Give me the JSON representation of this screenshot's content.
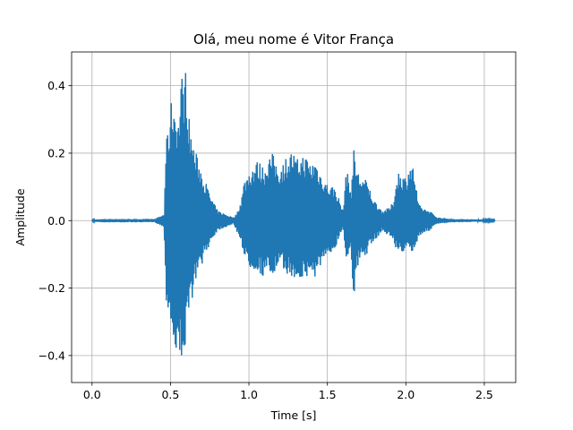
{
  "chart_data": {
    "type": "line",
    "title": "Olá, meu nome é Vitor França",
    "xlabel": "Time [s]",
    "ylabel": "Amplitude",
    "xlim": [
      -0.13,
      2.7
    ],
    "ylim": [
      -0.48,
      0.5
    ],
    "xticks": [
      0.0,
      0.5,
      1.0,
      1.5,
      2.0,
      2.5
    ],
    "xtick_labels": [
      "0.0",
      "0.5",
      "1.0",
      "1.5",
      "2.0",
      "2.5"
    ],
    "yticks": [
      -0.4,
      -0.2,
      0.0,
      0.2,
      0.4
    ],
    "ytick_labels": [
      "−0.4",
      "−0.2",
      "0.0",
      "0.2",
      "0.4"
    ],
    "grid": true,
    "line_color": "#1f77b4",
    "series": [
      {
        "x": [
          0.0,
          0.04,
          0.05,
          0.08,
          0.2,
          0.3,
          0.4,
          0.46,
          0.47,
          0.5,
          0.51,
          0.53,
          0.55,
          0.57,
          0.58,
          0.59,
          0.6,
          0.62,
          0.65,
          0.7,
          0.75,
          0.8,
          0.85,
          0.9,
          0.92,
          0.95,
          0.97,
          1.0,
          1.05,
          1.1,
          1.12,
          1.15,
          1.18,
          1.2,
          1.25,
          1.28,
          1.3,
          1.35,
          1.4,
          1.42,
          1.45,
          1.5,
          1.55,
          1.6,
          1.62,
          1.65,
          1.67,
          1.68,
          1.7,
          1.75,
          1.8,
          1.85,
          1.9,
          1.92,
          1.95,
          2.0,
          2.02,
          2.05,
          2.08,
          2.1,
          2.15,
          2.2,
          2.3,
          2.4,
          2.5,
          2.57
        ],
        "upper": [
          0.002,
          0.004,
          0.004,
          0.005,
          0.005,
          0.005,
          0.005,
          0.02,
          0.22,
          0.33,
          0.38,
          0.35,
          0.3,
          0.44,
          0.42,
          0.46,
          0.45,
          0.3,
          0.22,
          0.15,
          0.08,
          0.03,
          0.02,
          0.01,
          0.02,
          0.06,
          0.12,
          0.15,
          0.18,
          0.16,
          0.19,
          0.2,
          0.17,
          0.16,
          0.2,
          0.21,
          0.18,
          0.2,
          0.17,
          0.19,
          0.15,
          0.11,
          0.1,
          0.03,
          0.16,
          0.09,
          0.22,
          0.18,
          0.14,
          0.12,
          0.06,
          0.03,
          0.04,
          0.06,
          0.15,
          0.13,
          0.17,
          0.16,
          0.05,
          0.04,
          0.03,
          0.01,
          0.005,
          0.004,
          0.003,
          0.002
        ],
        "lower": [
          -0.002,
          -0.004,
          -0.004,
          -0.005,
          -0.005,
          -0.005,
          -0.005,
          -0.02,
          -0.23,
          -0.3,
          -0.37,
          -0.4,
          -0.44,
          -0.43,
          -0.35,
          -0.42,
          -0.38,
          -0.28,
          -0.2,
          -0.13,
          -0.07,
          -0.03,
          -0.02,
          -0.01,
          -0.03,
          -0.06,
          -0.11,
          -0.14,
          -0.15,
          -0.17,
          -0.16,
          -0.17,
          -0.15,
          -0.14,
          -0.16,
          -0.18,
          -0.17,
          -0.18,
          -0.16,
          -0.17,
          -0.14,
          -0.12,
          -0.08,
          -0.02,
          -0.12,
          -0.08,
          -0.26,
          -0.18,
          -0.13,
          -0.1,
          -0.06,
          -0.03,
          -0.05,
          -0.06,
          -0.1,
          -0.09,
          -0.1,
          -0.1,
          -0.05,
          -0.04,
          -0.03,
          -0.01,
          -0.005,
          -0.004,
          -0.003,
          -0.002
        ]
      }
    ]
  }
}
